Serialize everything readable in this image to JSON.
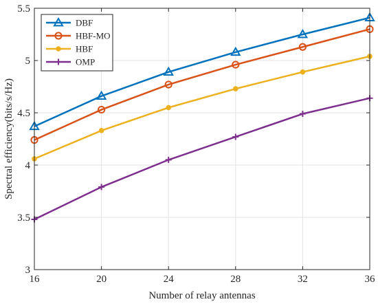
{
  "chart_data": {
    "type": "line",
    "title": "",
    "xlabel": "Number of relay antennas",
    "ylabel": "Spectral efficiency(bits/s/Hz)",
    "x": [
      16,
      20,
      24,
      28,
      32,
      36
    ],
    "xlim": [
      16,
      36
    ],
    "ylim": [
      3,
      5.5
    ],
    "xticks": [
      "16",
      "20",
      "24",
      "28",
      "32",
      "36"
    ],
    "yticks": [
      "3",
      "3.5",
      "4",
      "4.5",
      "5",
      "5.5"
    ],
    "grid": true,
    "legend_position": "top-left",
    "series": [
      {
        "name": "DBF",
        "color": "#0072bd",
        "marker": "triangle",
        "values": [
          4.37,
          4.66,
          4.89,
          5.08,
          5.25,
          5.41
        ]
      },
      {
        "name": "HBF-MO",
        "color": "#d95319",
        "marker": "circle",
        "values": [
          4.24,
          4.53,
          4.77,
          4.96,
          5.13,
          5.3
        ]
      },
      {
        "name": "HBF",
        "color": "#edb120",
        "marker": "dot",
        "values": [
          4.06,
          4.33,
          4.55,
          4.73,
          4.89,
          5.04
        ]
      },
      {
        "name": "OMP",
        "color": "#7e2f8e",
        "marker": "plus",
        "values": [
          3.48,
          3.79,
          4.05,
          4.27,
          4.49,
          4.64
        ]
      }
    ]
  }
}
